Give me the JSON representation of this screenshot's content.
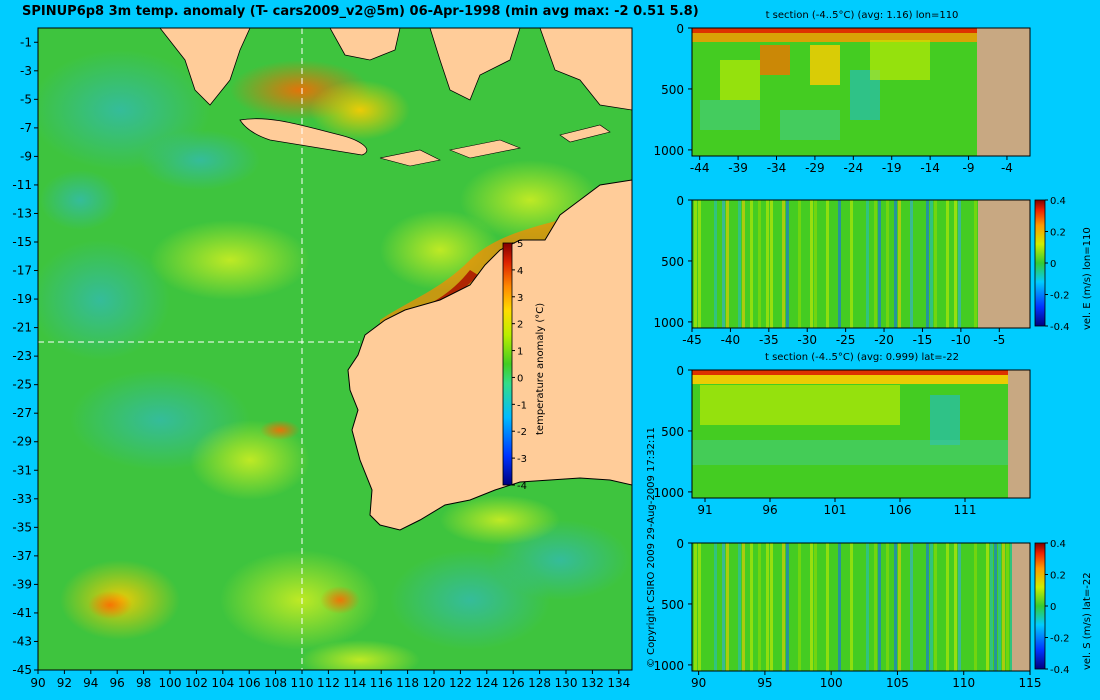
{
  "main_title": "SPINUP6p8 3m temp. anomaly (T- cars2009_v2@5m) 06-Apr-1998 (min avg max: -2 0.51 5.8)",
  "copyright": "© Copyright CSIRO 2009 29-Aug-2009 17:32:11",
  "colors": {
    "background": "#00ccff",
    "land": "#ffcc99",
    "section_land": "#c8a882",
    "crosshair": "#ffffff"
  },
  "chart_data": [
    {
      "type": "heatmap",
      "subject": "surface temperature anomaly map",
      "x_ticks": [
        "90",
        "92",
        "94",
        "96",
        "98",
        "100",
        "102",
        "104",
        "106",
        "108",
        "110",
        "112",
        "114",
        "116",
        "118",
        "120",
        "122",
        "124",
        "126",
        "128",
        "130",
        "132",
        "134"
      ],
      "y_ticks": [
        "-1",
        "-3",
        "-5",
        "-7",
        "-9",
        "-11",
        "-13",
        "-15",
        "-17",
        "-19",
        "-21",
        "-23",
        "-25",
        "-27",
        "-29",
        "-31",
        "-33",
        "-35",
        "-37",
        "-39",
        "-41",
        "-43",
        "-45"
      ],
      "xlim": [
        90,
        135
      ],
      "ylim": [
        -45,
        0
      ],
      "crosshair_lon": 110,
      "crosshair_lat": -22,
      "colorbar": {
        "label": "temperature anomaly (°C)",
        "ticks": [
          "5",
          "4",
          "3",
          "2",
          "1",
          "0",
          "-1",
          "-2",
          "-3",
          "-4"
        ],
        "range": [
          -4,
          5
        ]
      }
    },
    {
      "type": "heatmap",
      "title": "t section (-4..5°C) (avg: 1.16) lon=110",
      "x_ticks": [
        "-44",
        "-39",
        "-34",
        "-29",
        "-24",
        "-19",
        "-14",
        "-9",
        "-4"
      ],
      "y_ticks": [
        "0",
        "500",
        "1000"
      ],
      "xlim": [
        -45,
        -1
      ],
      "ylim": [
        1050,
        0
      ],
      "land_from": -8
    },
    {
      "type": "heatmap",
      "title": "",
      "x_ticks": [
        "-45",
        "-40",
        "-35",
        "-30",
        "-25",
        "-20",
        "-15",
        "-10",
        "-5"
      ],
      "y_ticks": [
        "0",
        "500",
        "1000"
      ],
      "xlim": [
        -45,
        -1
      ],
      "ylim": [
        1050,
        0
      ],
      "land_from": -8,
      "colorbar": {
        "label": "vel. E (m/s) lon=110",
        "ticks": [
          "0.4",
          "0.2",
          "0",
          "-0.2",
          "-0.4"
        ],
        "range": [
          -0.4,
          0.4
        ]
      }
    },
    {
      "type": "heatmap",
      "title": "t section (-4..5°C) (avg: 0.999) lat=-22",
      "x_ticks": [
        "91",
        "96",
        "101",
        "106",
        "111"
      ],
      "y_ticks": [
        "0",
        "500",
        "1000"
      ],
      "xlim": [
        90,
        116
      ],
      "ylim": [
        1050,
        0
      ],
      "land_from": 114
    },
    {
      "type": "heatmap",
      "title": "",
      "x_ticks": [
        "90",
        "95",
        "100",
        "105",
        "110",
        "115"
      ],
      "y_ticks": [
        "0",
        "500",
        "1000"
      ],
      "xlim": [
        89.5,
        115
      ],
      "ylim": [
        1050,
        0
      ],
      "land_from": 113.8,
      "colorbar": {
        "label": "vel. S (m/s) lat=-22",
        "ticks": [
          "0.4",
          "0.2",
          "0",
          "-0.2",
          "-0.4"
        ],
        "range": [
          -0.4,
          0.4
        ]
      }
    }
  ]
}
